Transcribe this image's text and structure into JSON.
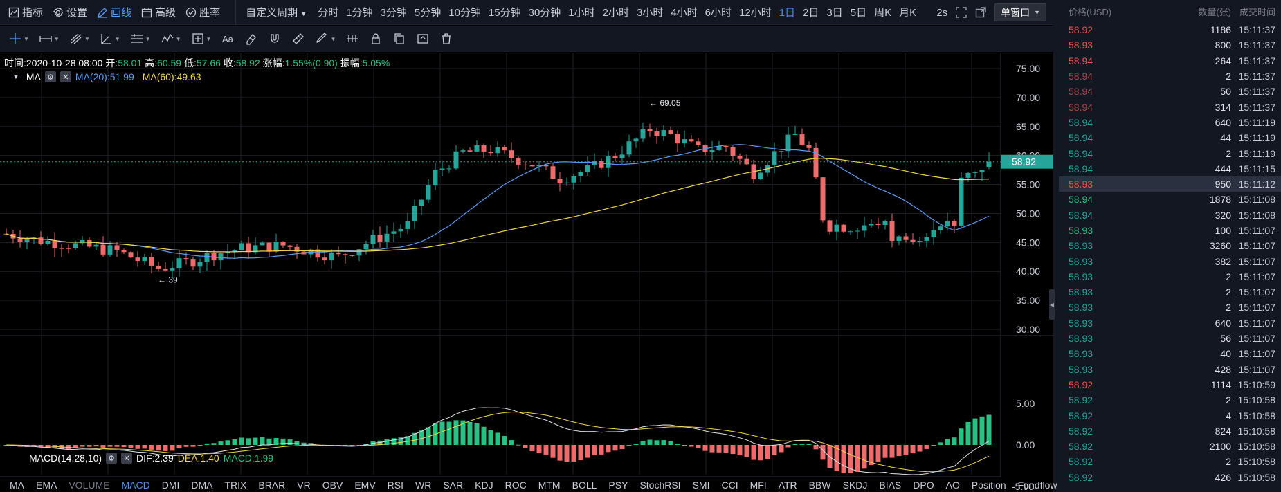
{
  "topbar": {
    "buttons": [
      {
        "label": "指标",
        "icon": "indicator-icon"
      },
      {
        "label": "设置",
        "icon": "gear-icon"
      },
      {
        "label": "画线",
        "icon": "pen-icon"
      },
      {
        "label": "高级",
        "icon": "advanced-icon"
      },
      {
        "label": "胜率",
        "icon": "winrate-icon"
      }
    ],
    "custom_period": "自定义周期",
    "periods": [
      "分时",
      "1分钟",
      "3分钟",
      "5分钟",
      "10分钟",
      "15分钟",
      "30分钟",
      "1小时",
      "2小时",
      "3小时",
      "4小时",
      "6小时",
      "12小时",
      "1日",
      "2日",
      "3日",
      "5日",
      "周K",
      "月K"
    ],
    "active_period": "1日",
    "interval": "2s",
    "window_mode": "单窗口"
  },
  "info": {
    "time_label": "时间:",
    "time": "2020-10-28 08:00",
    "open_label": "开:",
    "open": "58.01",
    "high_label": "高:",
    "high": "60.59",
    "low_label": "低:",
    "low": "57.66",
    "close_label": "收:",
    "close": "58.92",
    "change_label": "涨幅:",
    "change": "1.55%(0.90)",
    "amp_label": "振幅:",
    "amp": "5.05%"
  },
  "ma": {
    "name": "MA",
    "ma20": "MA(20):51.99",
    "ma60": "MA(60):49.63"
  },
  "macd": {
    "name": "MACD(14,28,10)",
    "dif": "DIF:2.39",
    "dea": "DEA:1.40",
    "macd": "MACD:1.99"
  },
  "price_axis": [
    "75.00",
    "70.00",
    "65.00",
    "60.00",
    "55.00",
    "50.00",
    "45.00",
    "40.00",
    "35.00",
    "30.00"
  ],
  "macd_axis": [
    "5.00",
    "0.00",
    "-5.00"
  ],
  "current_price": "58.92",
  "annotations": {
    "high": "← 69.05",
    "low": "← 39"
  },
  "bottom_tabs": [
    "MA",
    "EMA",
    "VOLUME",
    "MACD",
    "DMI",
    "DMA",
    "TRIX",
    "BRAR",
    "VR",
    "OBV",
    "EMV",
    "RSI",
    "WR",
    "SAR",
    "KDJ",
    "ROC",
    "MTM",
    "BOLL",
    "PSY",
    "StochRSI",
    "SMI",
    "CCI",
    "MFI",
    "ATR",
    "BBW",
    "SKDJ",
    "BIAS",
    "DPO",
    "AO",
    "Position",
    "Fundflow"
  ],
  "active_tab": "MACD",
  "dim_tab": "VOLUME",
  "colors": {
    "up": "#26a69a",
    "down": "#ef5350",
    "ma20": "#5b9cf6",
    "ma60": "#f2d74b",
    "accent": "#4c8bf5"
  },
  "trades": {
    "headers": {
      "price": "价格(USD)",
      "qty": "数量(张)",
      "time": "成交时间"
    },
    "rows": [
      {
        "price": "58.92",
        "qty": "1186",
        "time": "15:11:37",
        "cls": "dn"
      },
      {
        "price": "58.93",
        "qty": "800",
        "time": "15:11:37",
        "cls": "dn"
      },
      {
        "price": "58.94",
        "qty": "264",
        "time": "15:11:37",
        "cls": "dn"
      },
      {
        "price": "58.94",
        "qty": "2",
        "time": "15:11:37",
        "cls": "dnd"
      },
      {
        "price": "58.94",
        "qty": "50",
        "time": "15:11:37",
        "cls": "dnd"
      },
      {
        "price": "58.94",
        "qty": "314",
        "time": "15:11:37",
        "cls": "dnd"
      },
      {
        "price": "58.94",
        "qty": "640",
        "time": "15:11:19",
        "cls": "up"
      },
      {
        "price": "58.94",
        "qty": "44",
        "time": "15:11:19",
        "cls": "up"
      },
      {
        "price": "58.94",
        "qty": "2",
        "time": "15:11:19",
        "cls": "up"
      },
      {
        "price": "58.94",
        "qty": "444",
        "time": "15:11:15",
        "cls": "up"
      },
      {
        "price": "58.93",
        "qty": "950",
        "time": "15:11:12",
        "cls": "dn",
        "hl": true
      },
      {
        "price": "58.94",
        "qty": "1878",
        "time": "15:11:08",
        "cls": "upb"
      },
      {
        "price": "58.94",
        "qty": "320",
        "time": "15:11:08",
        "cls": "up"
      },
      {
        "price": "58.93",
        "qty": "100",
        "time": "15:11:07",
        "cls": "upb"
      },
      {
        "price": "58.93",
        "qty": "3260",
        "time": "15:11:07",
        "cls": "up"
      },
      {
        "price": "58.93",
        "qty": "382",
        "time": "15:11:07",
        "cls": "up"
      },
      {
        "price": "58.93",
        "qty": "2",
        "time": "15:11:07",
        "cls": "up"
      },
      {
        "price": "58.93",
        "qty": "2",
        "time": "15:11:07",
        "cls": "up"
      },
      {
        "price": "58.93",
        "qty": "2",
        "time": "15:11:07",
        "cls": "up"
      },
      {
        "price": "58.93",
        "qty": "640",
        "time": "15:11:07",
        "cls": "up"
      },
      {
        "price": "58.93",
        "qty": "56",
        "time": "15:11:07",
        "cls": "up"
      },
      {
        "price": "58.93",
        "qty": "40",
        "time": "15:11:07",
        "cls": "up"
      },
      {
        "price": "58.93",
        "qty": "428",
        "time": "15:11:07",
        "cls": "up"
      },
      {
        "price": "58.92",
        "qty": "1114",
        "time": "15:10:59",
        "cls": "dn"
      },
      {
        "price": "58.92",
        "qty": "2",
        "time": "15:10:58",
        "cls": "up"
      },
      {
        "price": "58.92",
        "qty": "4",
        "time": "15:10:58",
        "cls": "up"
      },
      {
        "price": "58.92",
        "qty": "824",
        "time": "15:10:58",
        "cls": "up"
      },
      {
        "price": "58.92",
        "qty": "2100",
        "time": "15:10:58",
        "cls": "up"
      },
      {
        "price": "58.92",
        "qty": "2",
        "time": "15:10:58",
        "cls": "up"
      },
      {
        "price": "58.92",
        "qty": "426",
        "time": "15:10:58",
        "cls": "up"
      }
    ]
  }
}
